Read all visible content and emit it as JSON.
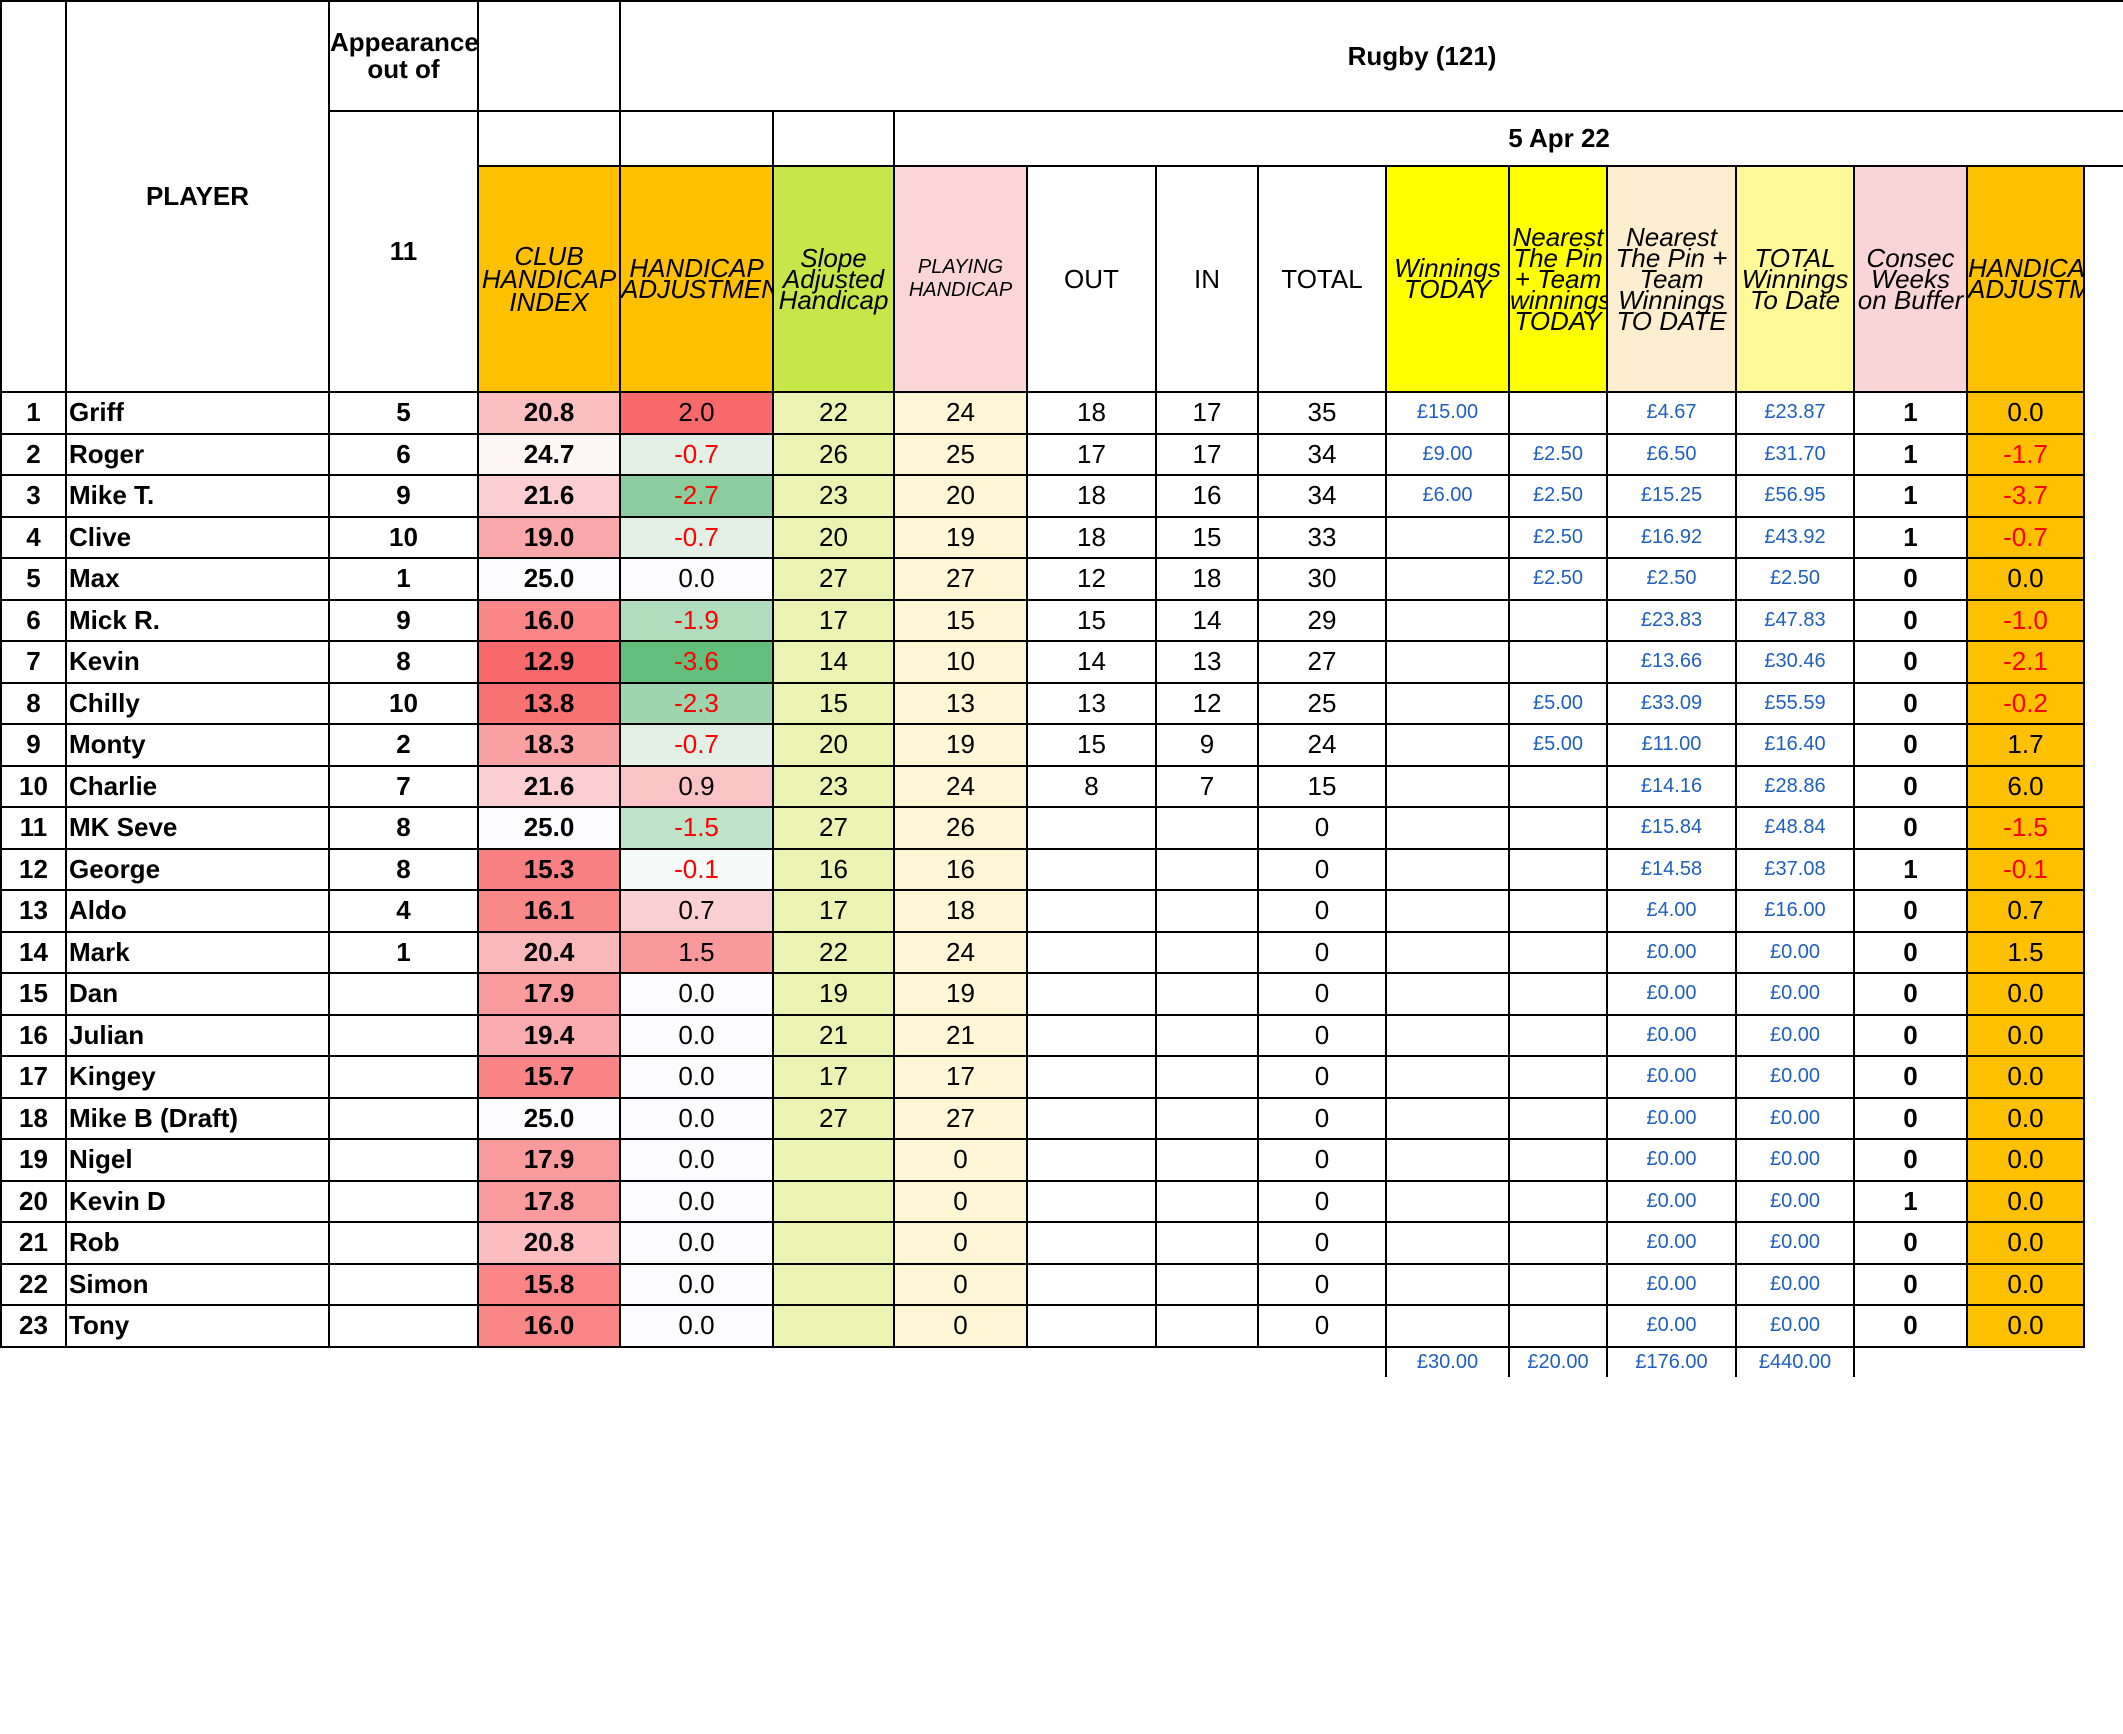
{
  "title": "Rugby (121)",
  "date": "5 Apr 22",
  "headers": {
    "player": "PLAYER",
    "appearances": "Appearances out of",
    "appearances_total": "11",
    "club_handicap_index": "CLUB HANDICAP INDEX",
    "handicap_adjustment": "HANDICAP ADJUSTMENT",
    "slope_adjusted": "Slope Adjusted Handicap",
    "playing_handicap": "PLAYING HANDICAP",
    "out": "OUT",
    "in": "IN",
    "total": "TOTAL",
    "winnings_today": "Winnings TODAY",
    "nearest_pin_today": "Nearest The Pin + Team winnings TODAY",
    "nearest_pin_to_date": "Nearest The Pin + Team Winnings TO DATE",
    "total_winnings": "TOTAL Winnings To Date",
    "consec_weeks": "Consec Weeks on Buffer",
    "handicap_adjustment_2": "HANDICAP ADJUSTMENT"
  },
  "colors": {
    "orange": "#ffc000",
    "green": "#c6e64a",
    "pink": "#fcd5d6",
    "yellow": "#ffff00",
    "negative_text": "#ff0000",
    "money_text": "#1f5fbf"
  },
  "rows": [
    {
      "num": "1",
      "name": "Griff",
      "apps": "5",
      "chi": "20.8",
      "chi_bg": "#fbbfc1",
      "adj": "2.0",
      "adj_bg": "#f8696b",
      "slope": "22",
      "play": "24",
      "out": "18",
      "in": "17",
      "total": "35",
      "win": "£15.00",
      "ntp": "",
      "ntp_date": "£4.67",
      "tot_win": "£23.87",
      "consec": "1",
      "adj2": "0.0"
    },
    {
      "num": "2",
      "name": "Roger",
      "apps": "6",
      "chi": "24.7",
      "chi_bg": "#fcf6f7",
      "adj": "-0.7",
      "adj_bg": "#e2f0e6",
      "slope": "26",
      "play": "25",
      "out": "17",
      "in": "17",
      "total": "34",
      "win": "£9.00",
      "ntp": "£2.50",
      "ntp_date": "£6.50",
      "tot_win": "£31.70",
      "consec": "1",
      "adj2": "-1.7"
    },
    {
      "num": "3",
      "name": "Mike T.",
      "apps": "9",
      "chi": "21.6",
      "chi_bg": "#fbcfd1",
      "adj": "-2.7",
      "adj_bg": "#8bcd9f",
      "slope": "23",
      "play": "20",
      "out": "18",
      "in": "16",
      "total": "34",
      "win": "£6.00",
      "ntp": "£2.50",
      "ntp_date": "£15.25",
      "tot_win": "£56.95",
      "consec": "1",
      "adj2": "-3.7"
    },
    {
      "num": "4",
      "name": "Clive",
      "apps": "10",
      "chi": "19.0",
      "chi_bg": "#faa8aa",
      "adj": "-0.7",
      "adj_bg": "#e2f0e6",
      "slope": "20",
      "play": "19",
      "out": "18",
      "in": "15",
      "total": "33",
      "win": "",
      "ntp": "£2.50",
      "ntp_date": "£16.92",
      "tot_win": "£43.92",
      "consec": "1",
      "adj2": "-0.7"
    },
    {
      "num": "5",
      "name": "Max",
      "apps": "1",
      "chi": "25.0",
      "chi_bg": "#fcfcff",
      "adj": "0.0",
      "adj_bg": "#fcfcff",
      "slope": "27",
      "play": "27",
      "out": "12",
      "in": "18",
      "total": "30",
      "win": "",
      "ntp": "£2.50",
      "ntp_date": "£2.50",
      "tot_win": "£2.50",
      "consec": "0",
      "adj2": "0.0"
    },
    {
      "num": "6",
      "name": "Mick R.",
      "apps": "9",
      "chi": "16.0",
      "chi_bg": "#f98788",
      "adj": "-1.9",
      "adj_bg": "#b0ddbd",
      "slope": "17",
      "play": "15",
      "out": "15",
      "in": "14",
      "total": "29",
      "win": "",
      "ntp": "",
      "ntp_date": "£23.83",
      "tot_win": "£47.83",
      "consec": "0",
      "adj2": "-1.0"
    },
    {
      "num": "7",
      "name": "Kevin",
      "apps": "8",
      "chi": "12.9",
      "chi_bg": "#f8696b",
      "adj": "-3.6",
      "adj_bg": "#63be7b",
      "slope": "14",
      "play": "10",
      "out": "14",
      "in": "13",
      "total": "27",
      "win": "",
      "ntp": "",
      "ntp_date": "£13.66",
      "tot_win": "£30.46",
      "consec": "0",
      "adj2": "-2.1"
    },
    {
      "num": "8",
      "name": "Chilly",
      "apps": "10",
      "chi": "13.8",
      "chi_bg": "#f87173",
      "adj": "-2.3",
      "adj_bg": "#9fd5ae",
      "slope": "15",
      "play": "13",
      "out": "13",
      "in": "12",
      "total": "25",
      "win": "",
      "ntp": "£5.00",
      "ntp_date": "£33.09",
      "tot_win": "£55.59",
      "consec": "0",
      "adj2": "-0.2"
    },
    {
      "num": "9",
      "name": "Monty",
      "apps": "2",
      "chi": "18.3",
      "chi_bg": "#f9a0a2",
      "adj": "-0.7",
      "adj_bg": "#e2f0e6",
      "slope": "20",
      "play": "19",
      "out": "15",
      "in": "9",
      "total": "24",
      "win": "",
      "ntp": "£5.00",
      "ntp_date": "£11.00",
      "tot_win": "£16.40",
      "consec": "0",
      "adj2": "1.7"
    },
    {
      "num": "10",
      "name": "Charlie",
      "apps": "7",
      "chi": "21.6",
      "chi_bg": "#fbcfd1",
      "adj": "0.9",
      "adj_bg": "#fac4c6",
      "slope": "23",
      "play": "24",
      "out": "8",
      "in": "7",
      "total": "15",
      "win": "",
      "ntp": "",
      "ntp_date": "£14.16",
      "tot_win": "£28.86",
      "consec": "0",
      "adj2": "6.0"
    },
    {
      "num": "11",
      "name": "MK Seve",
      "apps": "8",
      "chi": "25.0",
      "chi_bg": "#fcfcff",
      "adj": "-1.5",
      "adj_bg": "#bde3c8",
      "slope": "27",
      "play": "26",
      "out": "",
      "in": "",
      "total": "0",
      "win": "",
      "ntp": "",
      "ntp_date": "£15.84",
      "tot_win": "£48.84",
      "consec": "0",
      "adj2": "-1.5"
    },
    {
      "num": "12",
      "name": "George",
      "apps": "8",
      "chi": "15.3",
      "chi_bg": "#f98082",
      "adj": "-0.1",
      "adj_bg": "#f6faf8",
      "slope": "16",
      "play": "16",
      "out": "",
      "in": "",
      "total": "0",
      "win": "",
      "ntp": "",
      "ntp_date": "£14.58",
      "tot_win": "£37.08",
      "consec": "1",
      "adj2": "-0.1"
    },
    {
      "num": "13",
      "name": "Aldo",
      "apps": "4",
      "chi": "16.1",
      "chi_bg": "#f98889",
      "adj": "0.7",
      "adj_bg": "#fad0d2",
      "slope": "17",
      "play": "18",
      "out": "",
      "in": "",
      "total": "0",
      "win": "",
      "ntp": "",
      "ntp_date": "£4.00",
      "tot_win": "£16.00",
      "consec": "0",
      "adj2": "0.7"
    },
    {
      "num": "14",
      "name": "Mark",
      "apps": "1",
      "chi": "20.4",
      "chi_bg": "#fbb8ba",
      "adj": "1.5",
      "adj_bg": "#f9999b",
      "slope": "22",
      "play": "24",
      "out": "",
      "in": "",
      "total": "0",
      "win": "",
      "ntp": "",
      "ntp_date": "£0.00",
      "tot_win": "£0.00",
      "consec": "0",
      "adj2": "1.5"
    },
    {
      "num": "15",
      "name": "Dan",
      "apps": "",
      "chi": "17.9",
      "chi_bg": "#f99b9d",
      "adj": "0.0",
      "adj_bg": "#fcfcff",
      "slope": "19",
      "play": "19",
      "out": "",
      "in": "",
      "total": "0",
      "win": "",
      "ntp": "",
      "ntp_date": "£0.00",
      "tot_win": "£0.00",
      "consec": "0",
      "adj2": "0.0"
    },
    {
      "num": "16",
      "name": "Julian",
      "apps": "",
      "chi": "19.4",
      "chi_bg": "#faacae",
      "adj": "0.0",
      "adj_bg": "#fcfcff",
      "slope": "21",
      "play": "21",
      "out": "",
      "in": "",
      "total": "0",
      "win": "",
      "ntp": "",
      "ntp_date": "£0.00",
      "tot_win": "£0.00",
      "consec": "0",
      "adj2": "0.0"
    },
    {
      "num": "17",
      "name": "Kingey",
      "apps": "",
      "chi": "15.7",
      "chi_bg": "#f98486",
      "adj": "0.0",
      "adj_bg": "#fcfcff",
      "slope": "17",
      "play": "17",
      "out": "",
      "in": "",
      "total": "0",
      "win": "",
      "ntp": "",
      "ntp_date": "£0.00",
      "tot_win": "£0.00",
      "consec": "0",
      "adj2": "0.0"
    },
    {
      "num": "18",
      "name": "Mike B (Draft)",
      "apps": "",
      "chi": "25.0",
      "chi_bg": "#fcfcff",
      "adj": "0.0",
      "adj_bg": "#fcfcff",
      "slope": "27",
      "play": "27",
      "out": "",
      "in": "",
      "total": "0",
      "win": "",
      "ntp": "",
      "ntp_date": "£0.00",
      "tot_win": "£0.00",
      "consec": "0",
      "adj2": "0.0"
    },
    {
      "num": "19",
      "name": "Nigel",
      "apps": "",
      "chi": "17.9",
      "chi_bg": "#f99b9d",
      "adj": "0.0",
      "adj_bg": "#fcfcff",
      "slope": "",
      "play": "0",
      "out": "",
      "in": "",
      "total": "0",
      "win": "",
      "ntp": "",
      "ntp_date": "£0.00",
      "tot_win": "£0.00",
      "consec": "0",
      "adj2": "0.0"
    },
    {
      "num": "20",
      "name": "Kevin D",
      "apps": "",
      "chi": "17.8",
      "chi_bg": "#f99a9c",
      "adj": "0.0",
      "adj_bg": "#fcfcff",
      "slope": "",
      "play": "0",
      "out": "",
      "in": "",
      "total": "0",
      "win": "",
      "ntp": "",
      "ntp_date": "£0.00",
      "tot_win": "£0.00",
      "consec": "1",
      "adj2": "0.0"
    },
    {
      "num": "21",
      "name": "Rob",
      "apps": "",
      "chi": "20.8",
      "chi_bg": "#fbbdbf",
      "adj": "0.0",
      "adj_bg": "#fcfcff",
      "slope": "",
      "play": "0",
      "out": "",
      "in": "",
      "total": "0",
      "win": "",
      "ntp": "",
      "ntp_date": "£0.00",
      "tot_win": "£0.00",
      "consec": "0",
      "adj2": "0.0"
    },
    {
      "num": "22",
      "name": "Simon",
      "apps": "",
      "chi": "15.8",
      "chi_bg": "#f98587",
      "adj": "0.0",
      "adj_bg": "#fcfcff",
      "slope": "",
      "play": "0",
      "out": "",
      "in": "",
      "total": "0",
      "win": "",
      "ntp": "",
      "ntp_date": "£0.00",
      "tot_win": "£0.00",
      "consec": "0",
      "adj2": "0.0"
    },
    {
      "num": "23",
      "name": "Tony",
      "apps": "",
      "chi": "16.0",
      "chi_bg": "#f98788",
      "adj": "0.0",
      "adj_bg": "#fcfcff",
      "slope": "",
      "play": "0",
      "out": "",
      "in": "",
      "total": "0",
      "win": "",
      "ntp": "",
      "ntp_date": "£0.00",
      "tot_win": "£0.00",
      "consec": "0",
      "adj2": "0.0"
    }
  ],
  "totals": {
    "win": "£30.00",
    "ntp": "£20.00",
    "ntp_date": "£176.00",
    "tot_win": "£440.00"
  }
}
